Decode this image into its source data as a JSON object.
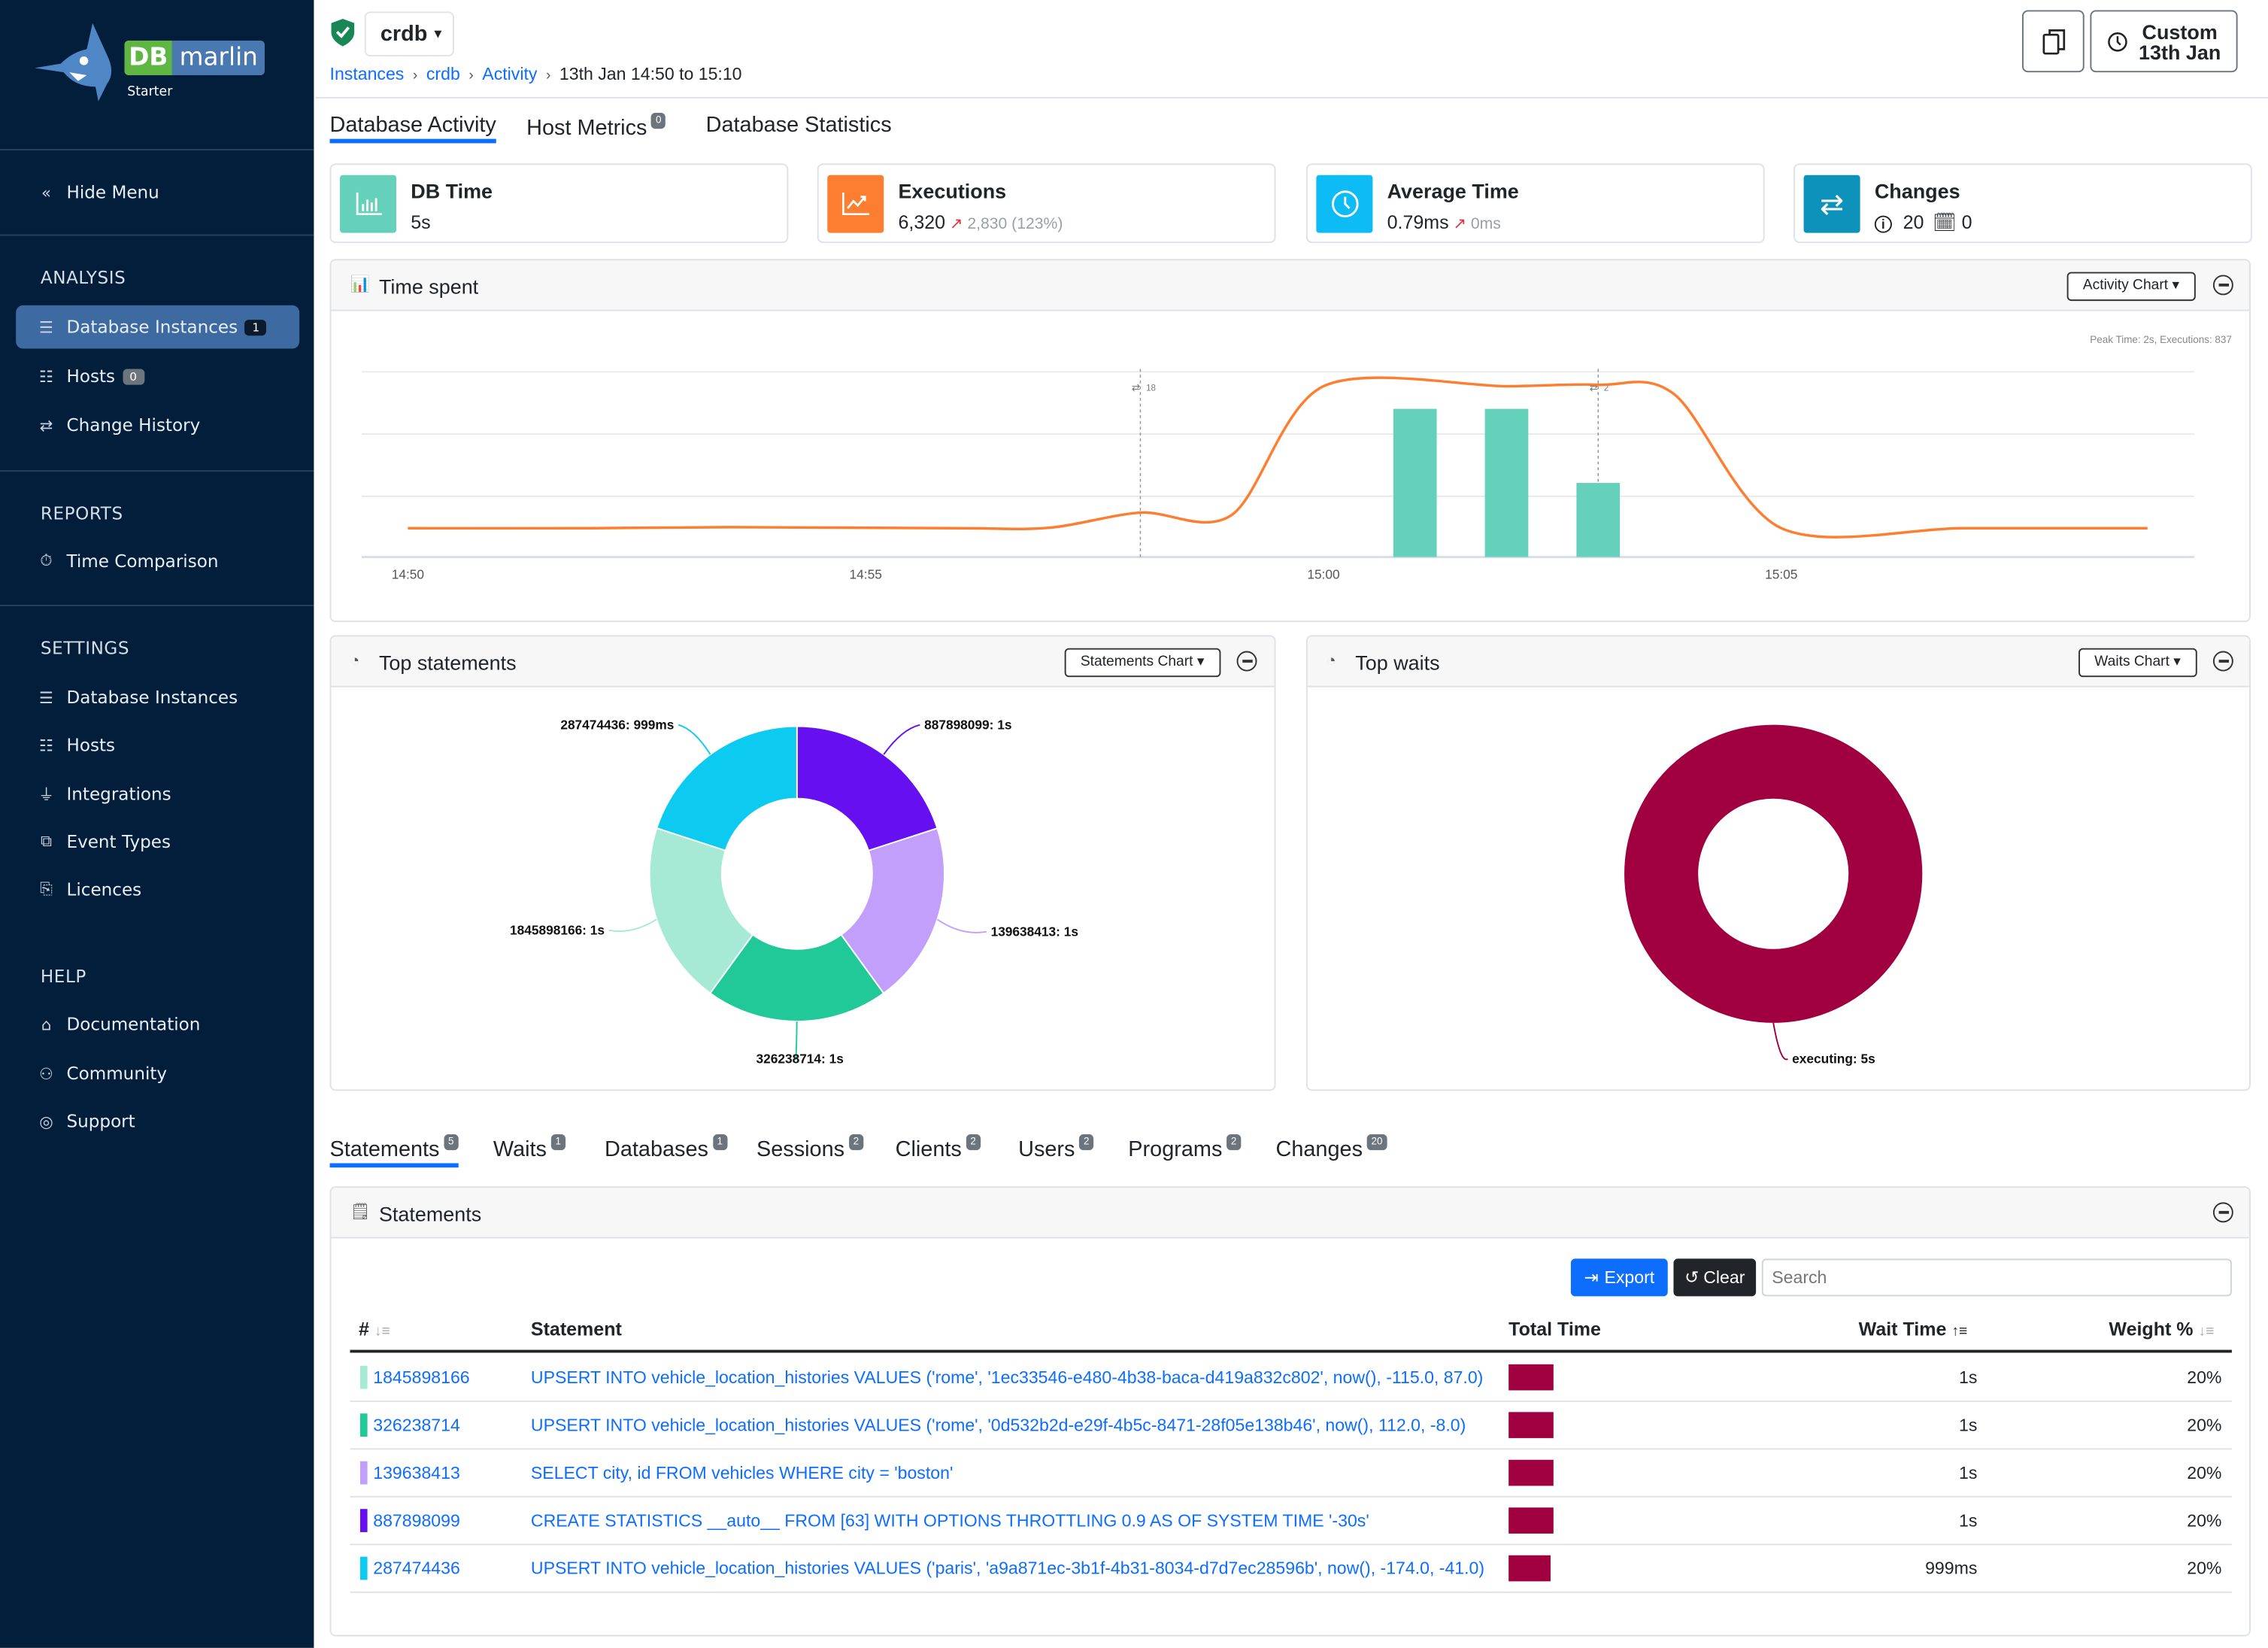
{
  "sidebar": {
    "logo": {
      "db": "DB",
      "marlin": "marlin",
      "edition": "Starter"
    },
    "hide_menu": "Hide Menu",
    "sections": [
      {
        "title": "ANALYSIS",
        "items": [
          {
            "label": "Database Instances",
            "badge": "1",
            "icon": "database-icon",
            "active": true
          },
          {
            "label": "Hosts",
            "badge": "0",
            "icon": "server-icon"
          },
          {
            "label": "Change History",
            "icon": "arrows-exchange-icon"
          }
        ]
      },
      {
        "title": "REPORTS",
        "items": [
          {
            "label": "Time Comparison",
            "icon": "stopwatch-icon"
          }
        ]
      },
      {
        "title": "SETTINGS",
        "items": [
          {
            "label": "Database Instances",
            "icon": "database-icon"
          },
          {
            "label": "Hosts",
            "icon": "server-icon"
          },
          {
            "label": "Integrations",
            "icon": "plug-icon"
          },
          {
            "label": "Event Types",
            "icon": "event-types-icon"
          },
          {
            "label": "Licences",
            "icon": "licence-icon"
          }
        ]
      },
      {
        "title": "HELP",
        "items": [
          {
            "label": "Documentation",
            "icon": "book-icon"
          },
          {
            "label": "Community",
            "icon": "people-icon"
          },
          {
            "label": "Support",
            "icon": "lifebuoy-icon"
          }
        ]
      }
    ]
  },
  "header": {
    "instance": "crdb",
    "breadcrumb": [
      "Instances",
      "crdb",
      "Activity",
      "13th Jan 14:50 to 15:10"
    ],
    "time_button": {
      "line1": "Custom",
      "line2": "13th Jan"
    }
  },
  "tabs": [
    {
      "label": "Database Activity",
      "active": true
    },
    {
      "label": "Host Metrics",
      "badge": "0"
    },
    {
      "label": "Database Statistics"
    }
  ],
  "kpis": [
    {
      "title": "DB Time",
      "value": "5s",
      "color": "#66d1bb",
      "icon": "bar-chart-icon"
    },
    {
      "title": "Executions",
      "value": "6,320",
      "delta": "2,830 (123%)",
      "color": "#fd7e30",
      "icon": "trend-up-chart-icon"
    },
    {
      "title": "Average Time",
      "value": "0.79ms",
      "delta": "0ms",
      "color": "#0dbcf5",
      "icon": "clock-icon"
    },
    {
      "title": "Changes",
      "info_count": "20",
      "calendar_count": "0",
      "color": "#0d93bb",
      "icon": "arrows-exchange-icon"
    }
  ],
  "time_spent": {
    "title": "Time spent",
    "dropdown": "Activity Chart",
    "peak_note": "Peak Time: 2s, Executions: 837"
  },
  "top_statements": {
    "title": "Top statements",
    "dropdown": "Statements Chart"
  },
  "top_waits": {
    "title": "Top waits",
    "dropdown": "Waits Chart"
  },
  "chart_data": [
    {
      "type": "bar+line",
      "title": "Time spent",
      "x_ticks": [
        "14:50",
        "14:55",
        "15:00",
        "15:05"
      ],
      "x_range": [
        "14:49:30",
        "15:10:00"
      ],
      "grid": true,
      "bars": {
        "color": "#66d1bb",
        "x": [
          "15:01",
          "15:02",
          "15:03"
        ],
        "values": [
          2,
          2,
          1
        ],
        "ylim": [
          0,
          2.5
        ]
      },
      "line": {
        "color": "#fd7e30",
        "ylim": [
          0,
          900
        ],
        "points": [
          [
            "14:50:00",
            140
          ],
          [
            "14:52:00",
            140
          ],
          [
            "14:53:30",
            145
          ],
          [
            "14:56:00",
            140
          ],
          [
            "14:57:00",
            142
          ],
          [
            "14:58:00",
            216
          ],
          [
            "14:59:00",
            205
          ],
          [
            "15:00:00",
            830
          ],
          [
            "15:02:00",
            830
          ],
          [
            "15:03:00",
            837
          ],
          [
            "15:03:50",
            790
          ],
          [
            "15:05:00",
            140
          ],
          [
            "15:07:00",
            140
          ],
          [
            "15:09:00",
            140
          ]
        ]
      },
      "annotations": [
        {
          "x": "14:58:00",
          "label": "18"
        },
        {
          "x": "15:03:00",
          "label": "2"
        }
      ]
    },
    {
      "type": "pie",
      "title": "Top statements",
      "slices": [
        {
          "label": "887898099: 1s",
          "value": 1,
          "color": "#6610f2"
        },
        {
          "label": "139638413: 1s",
          "value": 1,
          "color": "#c29ffa"
        },
        {
          "label": "326238714: 1s",
          "value": 1,
          "color": "#20c997"
        },
        {
          "label": "1845898166: 1s",
          "value": 1,
          "color": "#a6e9d5"
        },
        {
          "label": "287474436: 999ms",
          "value": 0.999,
          "color": "#0dcaf0"
        }
      ]
    },
    {
      "type": "pie",
      "title": "Top waits",
      "slices": [
        {
          "label": "executing: 5s",
          "value": 5,
          "color": "#a0003f"
        }
      ]
    }
  ],
  "bottom_tabs": [
    {
      "label": "Statements",
      "badge": "5",
      "active": true
    },
    {
      "label": "Waits",
      "badge": "1"
    },
    {
      "label": "Databases",
      "badge": "1"
    },
    {
      "label": "Sessions",
      "badge": "2"
    },
    {
      "label": "Clients",
      "badge": "2"
    },
    {
      "label": "Users",
      "badge": "2"
    },
    {
      "label": "Programs",
      "badge": "2"
    },
    {
      "label": "Changes",
      "badge": "20"
    }
  ],
  "statements": {
    "title": "Statements",
    "export": "Export",
    "clear": "Clear",
    "search_placeholder": "Search",
    "columns": [
      "#",
      "Statement",
      "Total Time",
      "Wait Time",
      "Weight %"
    ],
    "rows": [
      {
        "id": "1845898166",
        "color": "#a6e9d5",
        "statement": "UPSERT INTO vehicle_location_histories VALUES ('rome', '1ec33546-e480-4b38-baca-d419a832c802', now(), -115.0, 87.0)",
        "wait": "1s",
        "weight": "20%"
      },
      {
        "id": "326238714",
        "color": "#20c997",
        "statement": "UPSERT INTO vehicle_location_histories VALUES ('rome', '0d532b2d-e29f-4b5c-8471-28f05e138b46', now(), 112.0, -8.0)",
        "wait": "1s",
        "weight": "20%"
      },
      {
        "id": "139638413",
        "color": "#c29ffa",
        "statement": "SELECT city, id FROM vehicles WHERE city = 'boston'",
        "wait": "1s",
        "weight": "20%"
      },
      {
        "id": "887898099",
        "color": "#6610f2",
        "statement": "CREATE STATISTICS __auto__ FROM [63] WITH OPTIONS THROTTLING 0.9 AS OF SYSTEM TIME '-30s'",
        "wait": "1s",
        "weight": "20%"
      },
      {
        "id": "287474436",
        "color": "#0dcaf0",
        "statement": "UPSERT INTO vehicle_location_histories VALUES ('paris', 'a9a871ec-3b1f-4b31-8034-d7d7ec28596b', now(), -174.0, -41.0)",
        "wait": "999ms",
        "weight": "20%"
      }
    ]
  }
}
